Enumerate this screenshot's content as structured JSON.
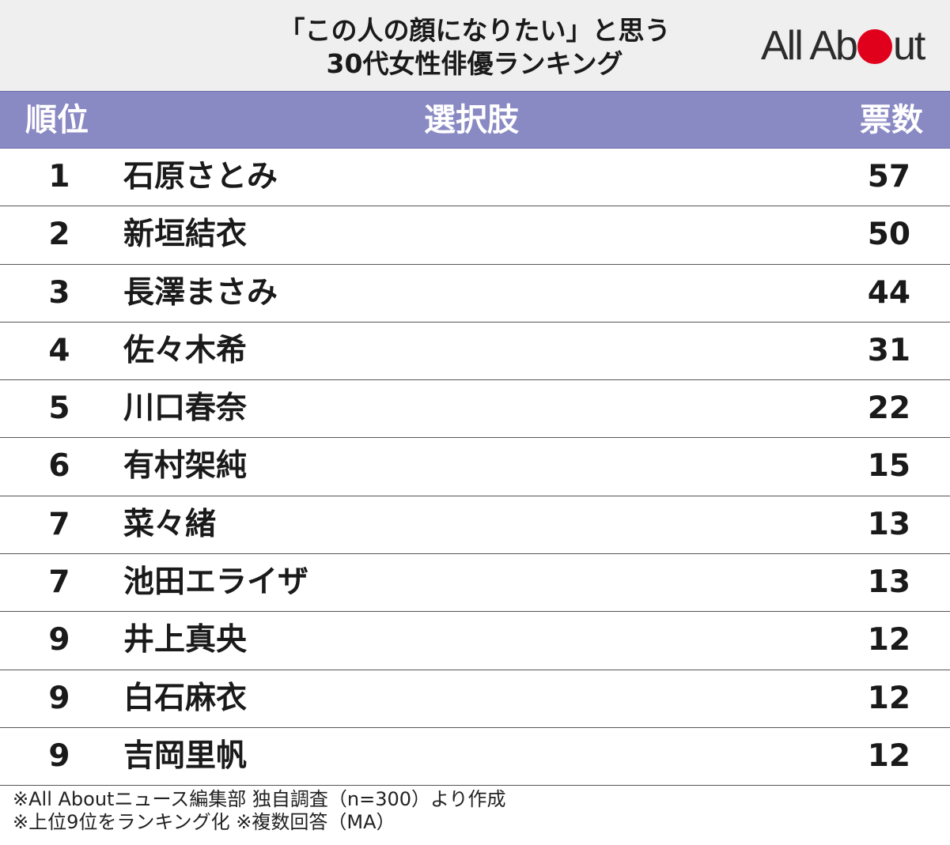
{
  "title_line1": "「この人の顔になりたい」と思う",
  "title_line2": "30代女性俳優ランキング",
  "logo_text_before": "All Ab",
  "logo_text_after": "ut",
  "logo_color": "#e0001b",
  "header_color": "#8989c4",
  "columns": {
    "rank": "順位",
    "choice": "選択肢",
    "votes": "票数"
  },
  "chart_data": {
    "type": "table",
    "columns": [
      "順位",
      "選択肢",
      "票数"
    ],
    "rows": [
      {
        "rank": "1",
        "name": "石原さとみ",
        "votes": "57"
      },
      {
        "rank": "2",
        "name": "新垣結衣",
        "votes": "50"
      },
      {
        "rank": "3",
        "name": "長澤まさみ",
        "votes": "44"
      },
      {
        "rank": "4",
        "name": "佐々木希",
        "votes": "31"
      },
      {
        "rank": "5",
        "name": "川口春奈",
        "votes": "22"
      },
      {
        "rank": "6",
        "name": "有村架純",
        "votes": "15"
      },
      {
        "rank": "7",
        "name": "菜々緒",
        "votes": "13"
      },
      {
        "rank": "7",
        "name": "池田エライザ",
        "votes": "13"
      },
      {
        "rank": "9",
        "name": "井上真央",
        "votes": "12"
      },
      {
        "rank": "9",
        "name": "白石麻衣",
        "votes": "12"
      },
      {
        "rank": "9",
        "name": "吉岡里帆",
        "votes": "12"
      }
    ]
  },
  "footnote_line1": "※All Aboutニュース編集部 独自調査（n=300）より作成",
  "footnote_line2": "※上位9位をランキング化 ※複数回答（MA）"
}
